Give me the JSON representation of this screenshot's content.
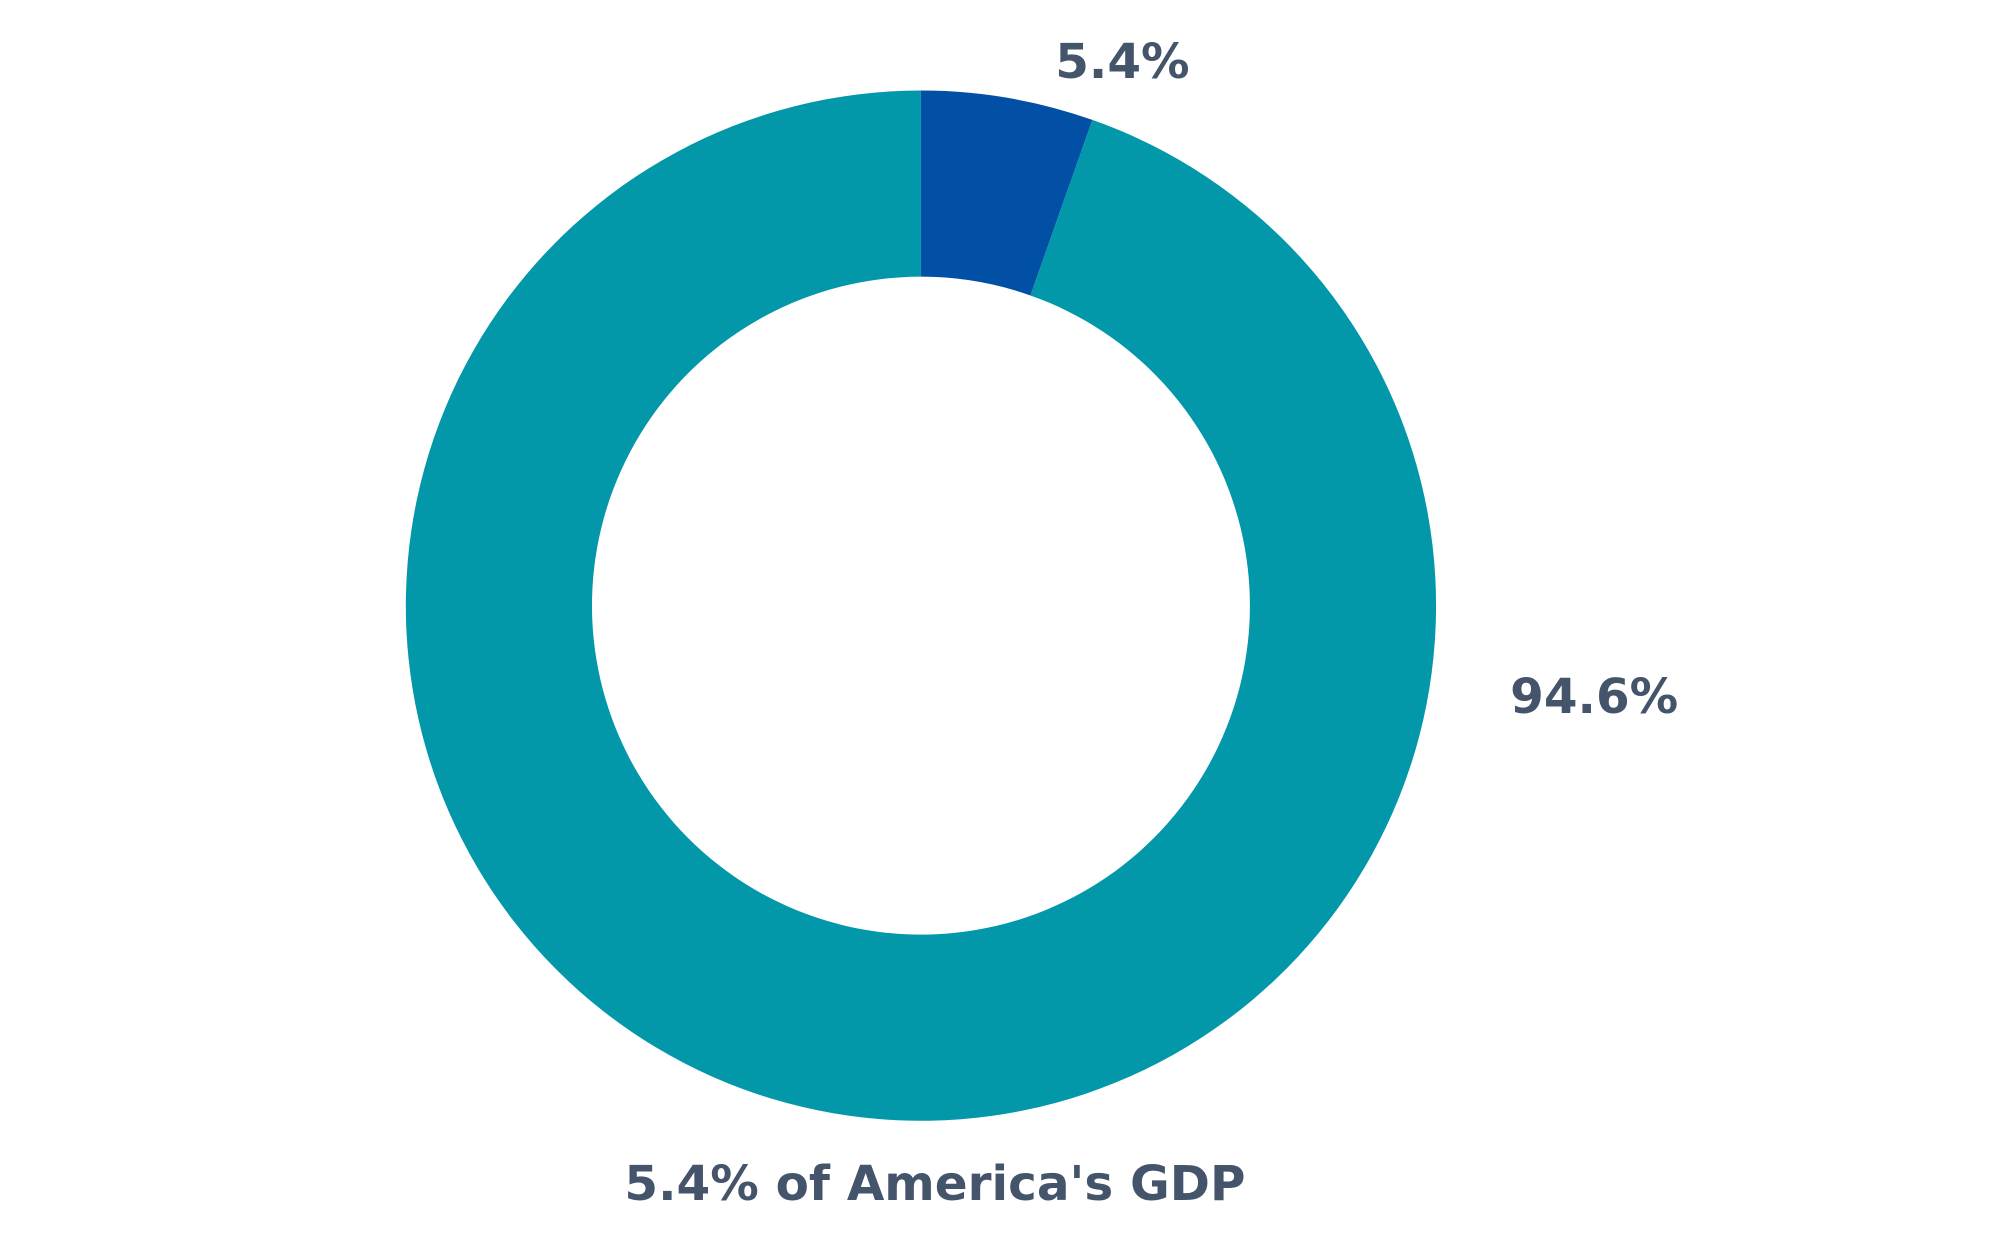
{
  "chart_data": {
    "type": "pie",
    "subtype": "donut",
    "title": "5.4% of America's GDP",
    "slices": [
      {
        "value": 5.4,
        "label": "5.4%",
        "color": "#024fa6"
      },
      {
        "value": 94.6,
        "label": "94.6%",
        "color": "#0297a9"
      }
    ],
    "start_angle_deg": 0,
    "direction": "clockwise",
    "legend": "none"
  },
  "colors": {
    "text": "#44546a",
    "background": "#ffffff"
  }
}
